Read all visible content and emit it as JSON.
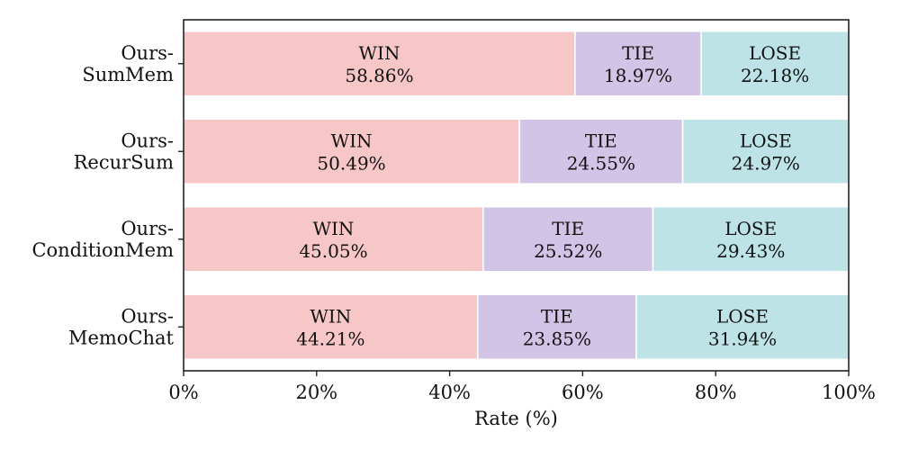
{
  "chart_data": {
    "type": "bar",
    "orientation": "horizontal",
    "stacked": true,
    "title": "",
    "xlabel": "Rate (%)",
    "ylabel": "",
    "xlim": [
      0,
      100
    ],
    "x_ticks": [
      0,
      20,
      40,
      60,
      80,
      100
    ],
    "x_tick_labels": [
      "0%",
      "20%",
      "40%",
      "60%",
      "80%",
      "100%"
    ],
    "grid": false,
    "categories": [
      [
        "Ours-",
        "SumMem"
      ],
      [
        "Ours-",
        "RecurSum"
      ],
      [
        "Ours-",
        "ConditionMem"
      ],
      [
        "Ours-",
        "MemoChat"
      ]
    ],
    "series": [
      {
        "name": "WIN",
        "color": "#f7c6c7",
        "values": [
          58.86,
          50.49,
          45.05,
          44.21
        ],
        "labels": [
          "58.86%",
          "50.49%",
          "45.05%",
          "44.21%"
        ]
      },
      {
        "name": "TIE",
        "color": "#d2c4e6",
        "values": [
          18.97,
          24.55,
          25.52,
          23.85
        ],
        "labels": [
          "18.97%",
          "24.55%",
          "25.52%",
          "23.85%"
        ]
      },
      {
        "name": "LOSE",
        "color": "#bde3e6",
        "values": [
          22.18,
          24.97,
          29.43,
          31.94
        ],
        "labels": [
          "22.18%",
          "24.97%",
          "29.43%",
          "31.94%"
        ]
      }
    ]
  }
}
